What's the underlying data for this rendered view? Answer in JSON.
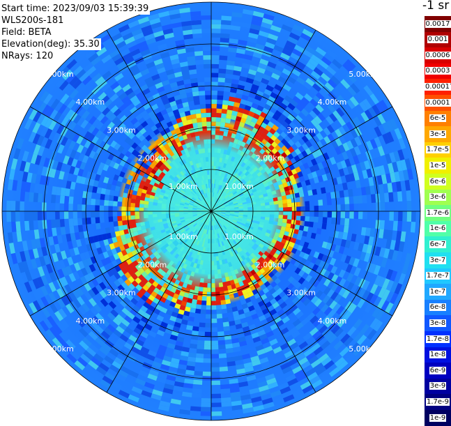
{
  "info": {
    "start_time": "Start time: 2023/09/03 15:39:39",
    "instrument": "WLS200s-181",
    "field": "Field: BETA",
    "elevation": "Elevation(deg): 35.30",
    "nrays": "NRays: 120"
  },
  "range_rings": [
    "1.00km",
    "2.00km",
    "3.00km",
    "4.00km",
    "5.00km"
  ],
  "colorbar": {
    "unit": "-1 sr",
    "labels": [
      "0.0017",
      "0.001",
      "0.0006",
      "0.0003",
      "0.00017",
      "0.0001",
      "6e-5",
      "3e-5",
      "1.7e-5",
      "1e-5",
      "6e-6",
      "3e-6",
      "1.7e-6",
      "1e-6",
      "6e-7",
      "3e-7",
      "1.7e-7",
      "1e-7",
      "6e-8",
      "3e-8",
      "1.7e-8",
      "1e-8",
      "6e-9",
      "3e-9",
      "1.7e-9",
      "1e-9"
    ],
    "colors": [
      "#800000",
      "#b00000",
      "#d80000",
      "#f00000",
      "#ff2000",
      "#ff5000",
      "#ff8000",
      "#ffa800",
      "#ffd000",
      "#f0f000",
      "#d0ff20",
      "#a0ff50",
      "#70ff80",
      "#50ffa8",
      "#30f0d0",
      "#20e0f0",
      "#20c8ff",
      "#20a8ff",
      "#1880ff",
      "#1058ff",
      "#0030ff",
      "#0010e0",
      "#0000c0",
      "#0000a0",
      "#000080",
      "#000060"
    ]
  },
  "colors": {
    "background_blue": "#2080ff",
    "inner_cyan": "#40e8e8",
    "ring_red": "#e02010",
    "grid": "#000000"
  }
}
